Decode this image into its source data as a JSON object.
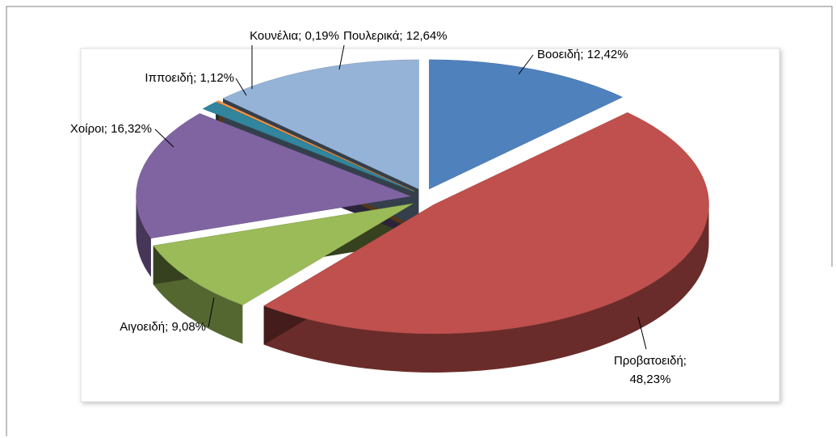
{
  "chart_data": {
    "type": "pie",
    "values": [
      12.42,
      48.23,
      9.08,
      16.32,
      1.12,
      0.19,
      12.64
    ],
    "value_labels": [
      [
        "Βοοειδή; 12,42%"
      ],
      [
        "Προβατοειδή;",
        "48,23%"
      ],
      [
        "Αιγοειδή; 9,08%"
      ],
      [
        "Χοίροι; 16,32%"
      ],
      [
        "Ιπποειδή; 1,12%"
      ],
      [
        "Κουνέλια; 0,19%"
      ],
      [
        "Πουλερικά; 12,64%"
      ]
    ],
    "colors": [
      "#4f81bd",
      "#c0504d",
      "#9bbb59",
      "#8064a2",
      "#31859c",
      "#f79646",
      "#95b3d7"
    ]
  }
}
